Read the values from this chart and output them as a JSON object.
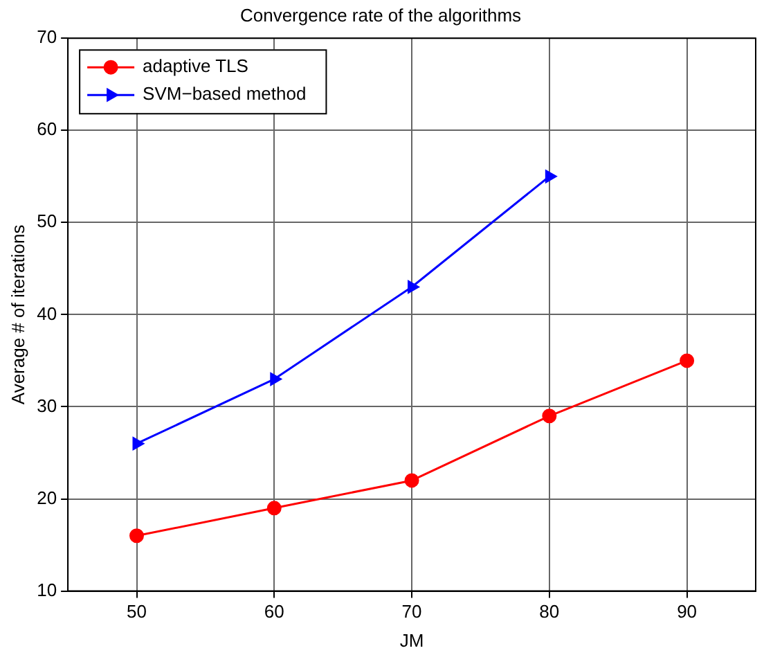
{
  "chart_data": {
    "type": "line",
    "title": "Convergence rate of the algorithms",
    "xlabel": "JM",
    "ylabel": "Average # of iterations",
    "x": [
      50,
      60,
      70,
      80,
      90
    ],
    "xlim": [
      45,
      95
    ],
    "xticks": [
      50,
      60,
      70,
      80,
      90
    ],
    "ylim": [
      10,
      70
    ],
    "yticks": [
      10,
      20,
      30,
      40,
      50,
      60,
      70
    ],
    "series": [
      {
        "name": "adaptive TLS",
        "color": "#ff0000",
        "marker": "circle",
        "values": [
          16,
          19,
          22,
          29,
          35
        ]
      },
      {
        "name": "SVM−based method",
        "color": "#0000ff",
        "marker": "triangle",
        "values": [
          26,
          33,
          43,
          55,
          null
        ]
      }
    ],
    "grid": true,
    "legend": "top left",
    "line_style": "solid"
  }
}
